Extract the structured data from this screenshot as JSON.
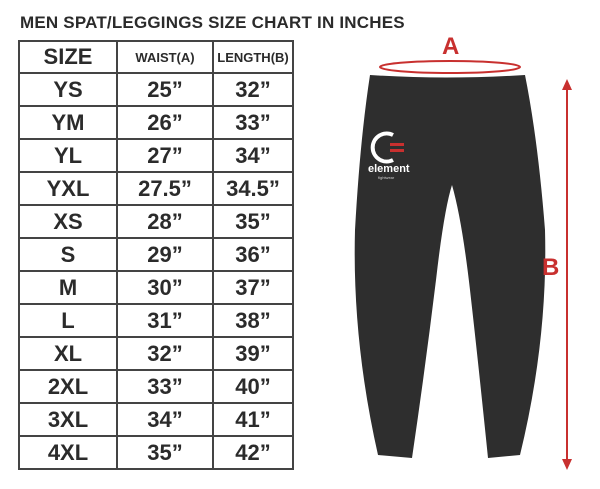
{
  "title": "MEN SPAT/LEGGINGS SIZE CHART IN INCHES",
  "headers": [
    "SIZE",
    "WAIST(A)",
    "LENGTH(B)"
  ],
  "rows": [
    [
      "YS",
      "25”",
      "32”"
    ],
    [
      "YM",
      "26”",
      "33”"
    ],
    [
      "YL",
      "27”",
      "34”"
    ],
    [
      "YXL",
      "27.5”",
      "34.5”"
    ],
    [
      "XS",
      "28”",
      "35”"
    ],
    [
      "S",
      "29”",
      "36”"
    ],
    [
      "M",
      "30”",
      "37”"
    ],
    [
      "L",
      "31”",
      "38”"
    ],
    [
      "XL",
      "32”",
      "39”"
    ],
    [
      "2XL",
      "33”",
      "40”"
    ],
    [
      "3XL",
      "34”",
      "41”"
    ],
    [
      "4XL",
      "35”",
      "42”"
    ]
  ],
  "diagram": {
    "label_a": "A",
    "label_b": "B",
    "logo_text": "element",
    "logo_sub": "fightwear",
    "accent": "#c8302f",
    "garment": "#2e2e2e"
  }
}
